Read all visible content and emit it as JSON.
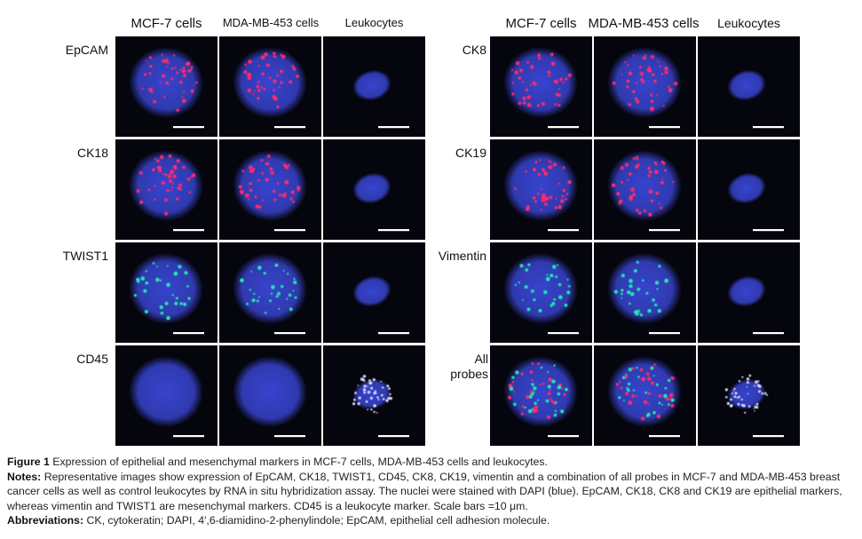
{
  "figure": {
    "column_headers": [
      "MCF-7 cells",
      "MDA-MB-453 cells",
      "Leukocytes"
    ],
    "left_rows": [
      {
        "label": "EpCAM",
        "signal": "red"
      },
      {
        "label": "CK18",
        "signal": "red"
      },
      {
        "label": "TWIST1",
        "signal": "green"
      },
      {
        "label": "CD45",
        "signal": "white"
      }
    ],
    "right_rows": [
      {
        "label": "CK8",
        "signal": "red"
      },
      {
        "label": "CK19",
        "signal": "red"
      },
      {
        "label": "Vimentin",
        "signal": "green"
      },
      {
        "label": "All probes",
        "signal": "mixed"
      }
    ],
    "colors": {
      "nucleus": "#3a47d8",
      "red_probe": "#ff2a6a",
      "green_probe": "#20e8b0",
      "white_probe": "#d8d8ff",
      "background": "#05050d"
    }
  },
  "caption": {
    "figure_label": "Figure 1",
    "title": "Expression of epithelial and mesenchymal markers in MCF-7 cells, MDA-MB-453 cells and leukocytes.",
    "notes_label": "Notes:",
    "notes": "Representative images show expression of EpCAM, CK18, TWIST1, CD45, CK8, CK19, vimentin and a combination of all probes in MCF-7 and MDA-MB-453 breast cancer cells as well as control leukocytes by RNA in situ hybridization assay. The nuclei were stained with DAPI (blue). EpCAM, CK18, CK8 and CK19 are epithelial markers, whereas vimentin and TWIST1 are mesenchymal markers. CD45 is a leukocyte marker. Scale bars =10 μm.",
    "abbreviations_label": "Abbreviations:",
    "abbreviations": "CK, cytokeratin; DAPI, 4′,6-diamidino-2-phenylindole; EpCAM, epithelial cell adhesion molecule."
  }
}
